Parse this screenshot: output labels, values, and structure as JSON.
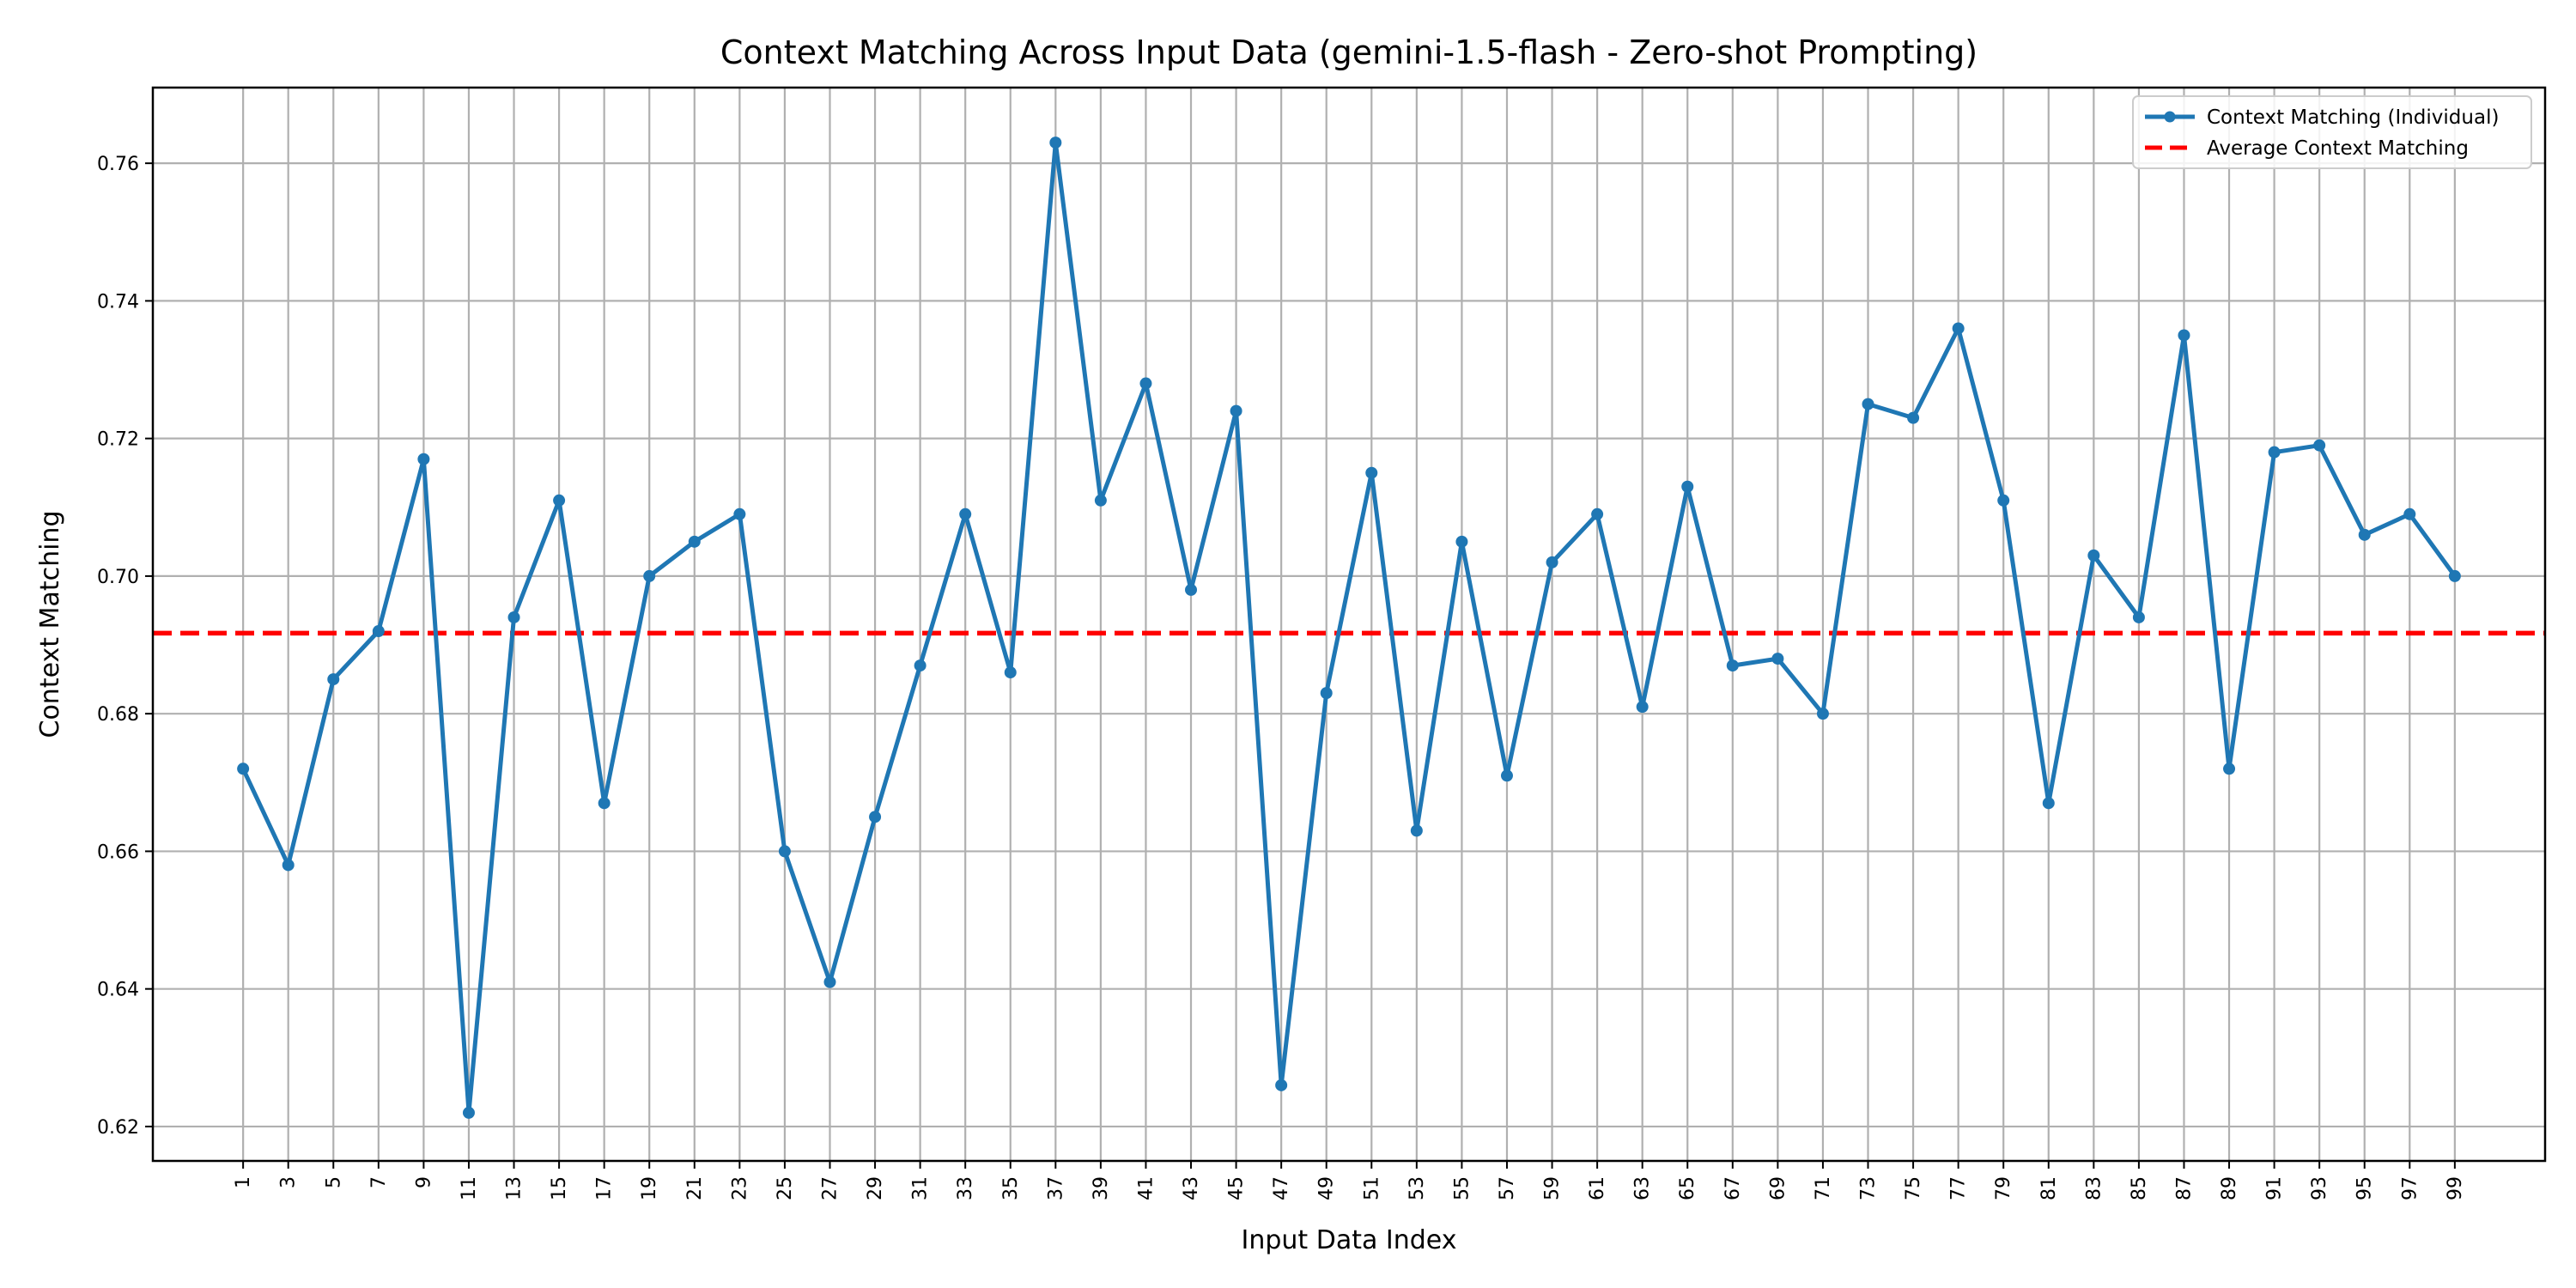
{
  "chart_data": {
    "type": "line",
    "title": "Context Matching Across Input Data (gemini-1.5-flash - Zero-shot Prompting)",
    "xlabel": "Input Data Index",
    "ylabel": "Context Matching",
    "xlim": [
      -3,
      103
    ],
    "ylim": [
      0.615,
      0.771
    ],
    "x_ticks": [
      1,
      3,
      5,
      7,
      9,
      11,
      13,
      15,
      17,
      19,
      21,
      23,
      25,
      27,
      29,
      31,
      33,
      35,
      37,
      39,
      41,
      43,
      45,
      47,
      49,
      51,
      53,
      55,
      57,
      59,
      61,
      63,
      65,
      67,
      69,
      71,
      73,
      75,
      77,
      79,
      81,
      83,
      85,
      87,
      89,
      91,
      93,
      95,
      97,
      99
    ],
    "y_ticks": [
      0.62,
      0.64,
      0.66,
      0.68,
      0.7,
      0.72,
      0.74,
      0.76
    ],
    "y_tick_labels": [
      "0.62",
      "0.64",
      "0.66",
      "0.68",
      "0.70",
      "0.72",
      "0.74",
      "0.76"
    ],
    "grid": true,
    "legend_position": "top-right",
    "series": [
      {
        "name": "Context Matching (Individual)",
        "color": "#1f77b4",
        "style": "solid-with-markers",
        "x": [
          1,
          3,
          5,
          7,
          9,
          11,
          13,
          15,
          17,
          19,
          21,
          23,
          25,
          27,
          29,
          31,
          33,
          35,
          37,
          39,
          41,
          43,
          45,
          47,
          49,
          51,
          53,
          55,
          57,
          59,
          61,
          63,
          65,
          67,
          69,
          71,
          73,
          75,
          77,
          79,
          81,
          83,
          85,
          87,
          89,
          91,
          93,
          95,
          97,
          99
        ],
        "y": [
          0.672,
          0.658,
          0.685,
          0.692,
          0.717,
          0.622,
          0.694,
          0.711,
          0.667,
          0.7,
          0.705,
          0.709,
          0.66,
          0.641,
          0.665,
          0.687,
          0.709,
          0.686,
          0.763,
          0.711,
          0.728,
          0.698,
          0.724,
          0.626,
          0.683,
          0.715,
          0.663,
          0.705,
          0.671,
          0.702,
          0.709,
          0.681,
          0.713,
          0.687,
          0.688,
          0.68,
          0.725,
          0.723,
          0.736,
          0.711,
          0.667,
          0.703,
          0.694,
          0.735,
          0.672,
          0.718,
          0.719,
          0.706,
          0.709,
          0.7
        ]
      },
      {
        "name": "Average Context Matching",
        "color": "#ff0000",
        "style": "dashed",
        "y": 0.6917
      }
    ]
  }
}
